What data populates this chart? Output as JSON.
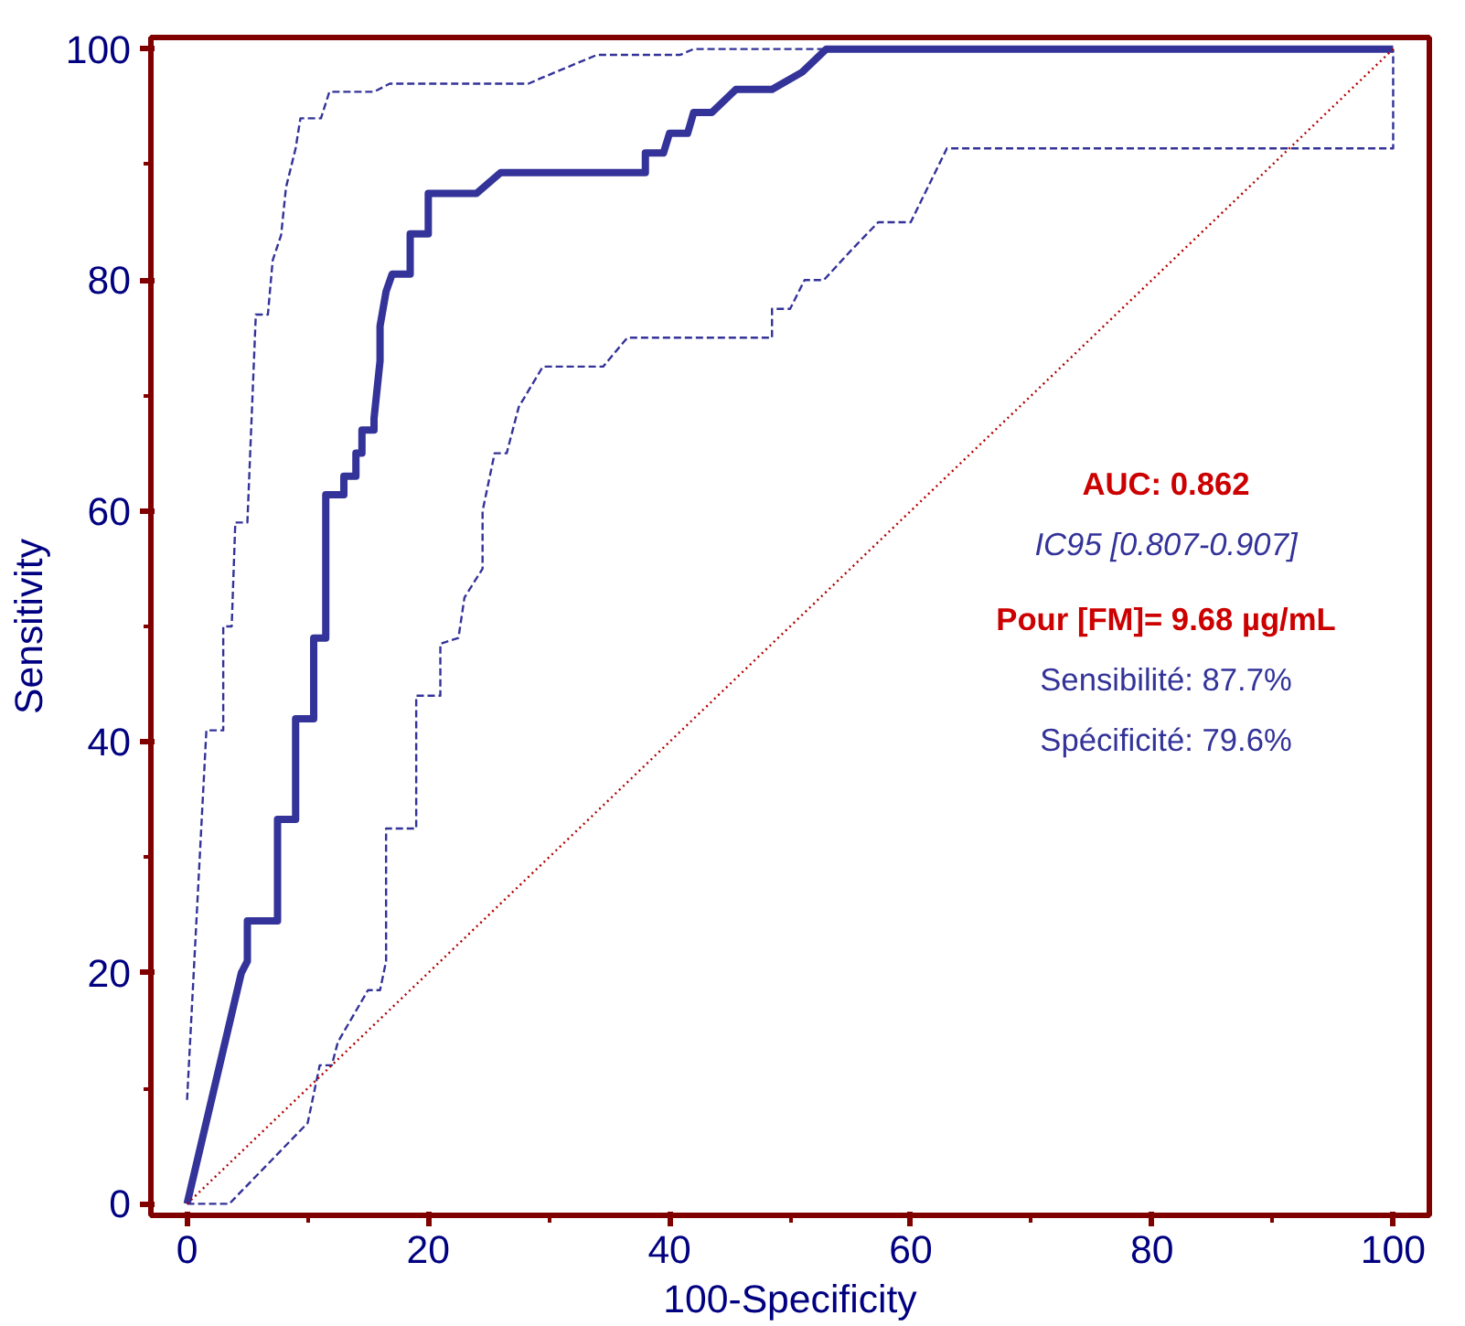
{
  "chart_data": {
    "type": "line",
    "xlabel": "100-Specificity",
    "ylabel": "Sensitivity",
    "xlim": [
      -3,
      103
    ],
    "ylim": [
      -1,
      101
    ],
    "xticks": [
      0,
      20,
      40,
      60,
      80,
      100
    ],
    "yticks": [
      0,
      20,
      40,
      60,
      80,
      100
    ],
    "grid": false,
    "marker": "none",
    "series": [
      {
        "color": "#333399",
        "line_style": "solid",
        "x": [
          0,
          4.5,
          5,
          5,
          7.5,
          7.5,
          9,
          9,
          10.5,
          10.5,
          11.5,
          11.5,
          13,
          13,
          14,
          14,
          14.5,
          14.5,
          15.5,
          15.5,
          16,
          16,
          16.5,
          17,
          18.5,
          18.5,
          20,
          20,
          24,
          26,
          38,
          38,
          39.5,
          40,
          41.5,
          42,
          43.5,
          45.5,
          48.5,
          51,
          53,
          100
        ],
        "values": [
          0,
          20,
          21,
          24.5,
          24.5,
          33.3,
          33.3,
          42,
          42,
          49,
          49,
          61.4,
          61.4,
          63,
          63,
          65,
          65,
          67,
          67,
          68,
          73,
          76,
          79,
          80.5,
          80.5,
          84,
          84,
          87.5,
          87.5,
          89.3,
          89.3,
          91,
          91,
          92.7,
          92.7,
          94.5,
          94.5,
          96.5,
          96.5,
          98,
          100,
          100
        ]
      },
      {
        "color": "#333399",
        "line_style": "dashed",
        "x": [
          0,
          1.6,
          3,
          3,
          3.7,
          4,
          5,
          5.7,
          6.7,
          7.1,
          7.8,
          8.2,
          9,
          9.4,
          11.1,
          11.8,
          15.5,
          16.8,
          28.3,
          29.4,
          34,
          40.9,
          42,
          100
        ],
        "values": [
          9,
          41,
          41,
          50,
          50,
          59,
          59,
          77,
          77,
          81.7,
          83.9,
          88,
          91.4,
          94,
          94,
          96.3,
          96.3,
          97,
          97,
          97.5,
          99.5,
          99.5,
          100,
          100
        ]
      },
      {
        "color": "#333399",
        "line_style": "dashed",
        "x": [
          0,
          3.5,
          10,
          11,
          12,
          12.5,
          15,
          16,
          16.5,
          16.5,
          19,
          19,
          21,
          21,
          22.5,
          23,
          24.5,
          24.5,
          25.5,
          26.5,
          27.5,
          29.5,
          34.5,
          36.5,
          48.5,
          48.5,
          50,
          51.2,
          52.8,
          55,
          57.3,
          60,
          63,
          100,
          100
        ],
        "values": [
          0,
          0,
          7,
          12,
          12,
          14,
          18.5,
          18.5,
          21,
          32.5,
          32.5,
          44,
          44,
          48.5,
          49,
          52.5,
          55,
          60,
          65,
          65,
          69,
          72.5,
          72.5,
          75,
          75,
          77.5,
          77.5,
          80,
          80,
          82.5,
          85,
          85,
          91.4,
          91.4,
          100
        ]
      },
      {
        "color": "#b00000",
        "line_style": "dotted",
        "x": [
          0,
          100
        ],
        "values": [
          0,
          100
        ]
      }
    ],
    "annotations": [
      "AUC: 0.862",
      "IC95 [0.807-0.907]",
      "Pour [FM]= 9.68 µg/mL",
      "Sensibilité: 87.7%",
      "Spécificité: 79.6%"
    ]
  }
}
